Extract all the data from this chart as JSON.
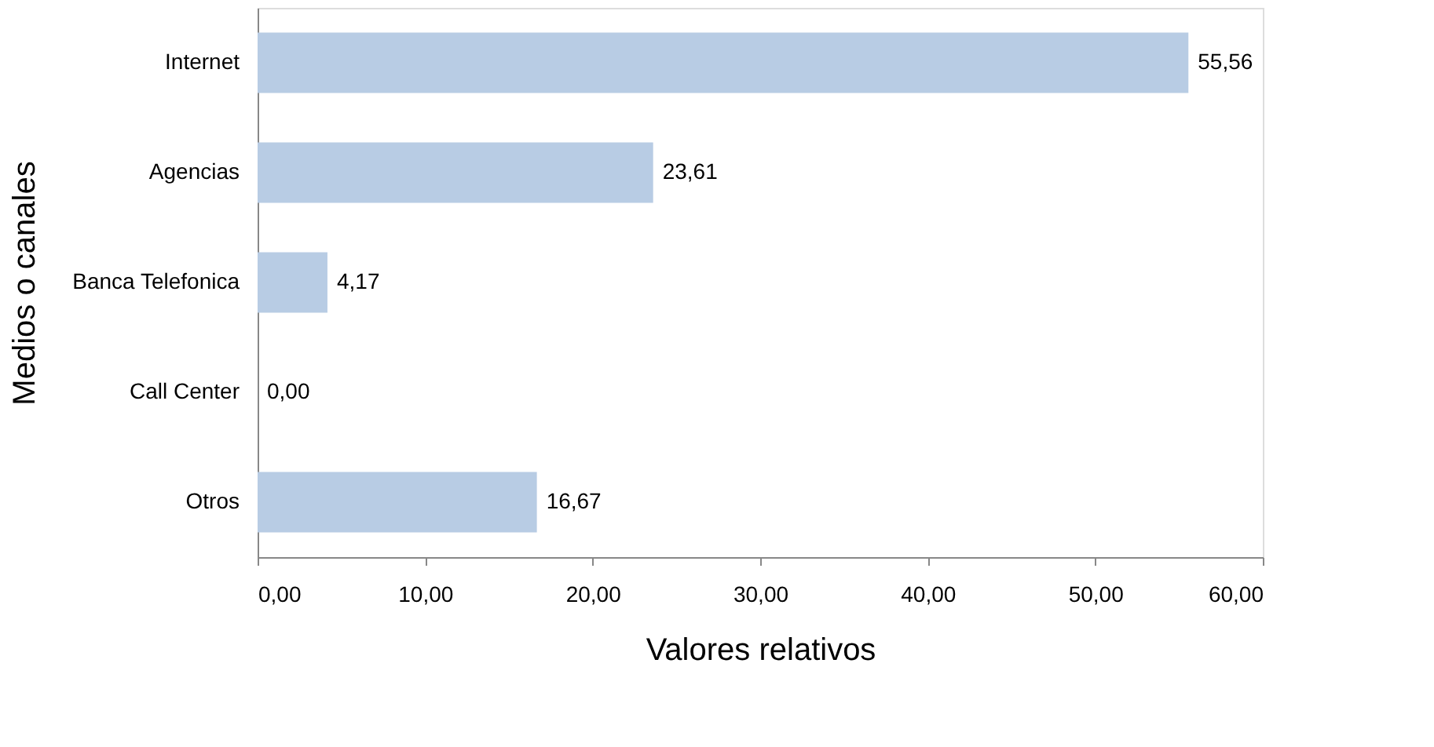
{
  "chart_data": {
    "type": "bar",
    "orientation": "horizontal",
    "categories": [
      "Internet",
      "Agencias",
      "Banca Telefonica",
      "Call Center",
      "Otros"
    ],
    "values": [
      55.56,
      23.61,
      4.17,
      0.0,
      16.67
    ],
    "value_labels": [
      "55,56",
      "23,61",
      "4,17",
      "0,00",
      "16,67"
    ],
    "color": "#b8cce4",
    "xlabel": "Valores relativos",
    "ylabel": "Medios o canales",
    "xlim": [
      0,
      60
    ],
    "xticks": [
      {
        "value": 0,
        "label": "0,00"
      },
      {
        "value": 10,
        "label": "10,00"
      },
      {
        "value": 20,
        "label": "20,00"
      },
      {
        "value": 30,
        "label": "30,00"
      },
      {
        "value": 40,
        "label": "40,00"
      },
      {
        "value": 50,
        "label": "50,00"
      },
      {
        "value": 60,
        "label": "60,00"
      }
    ],
    "grid": false
  }
}
